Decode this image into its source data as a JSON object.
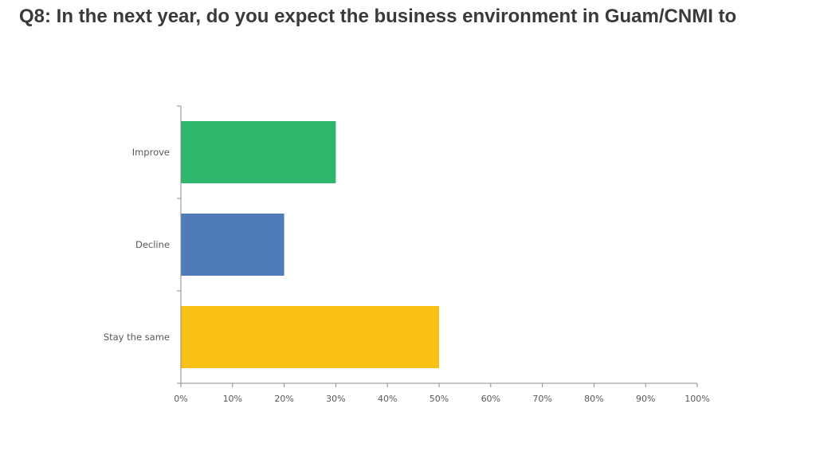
{
  "slide": {
    "title": "Q8: In the next year, do you expect the business environment in Guam/CNMI to"
  },
  "chart_data": {
    "type": "bar",
    "orientation": "horizontal",
    "categories": [
      "Improve",
      "Decline",
      "Stay the same"
    ],
    "values": [
      30,
      20,
      50
    ],
    "colors": [
      "#2eb66d",
      "#4f7bba",
      "#f8bf14"
    ],
    "xlim": [
      0,
      100
    ],
    "x_ticks": [
      "0%",
      "10%",
      "20%",
      "30%",
      "40%",
      "50%",
      "60%",
      "70%",
      "80%",
      "90%",
      "100%"
    ],
    "grid": false,
    "legend": "none",
    "title": "",
    "xlabel": "",
    "ylabel": ""
  }
}
